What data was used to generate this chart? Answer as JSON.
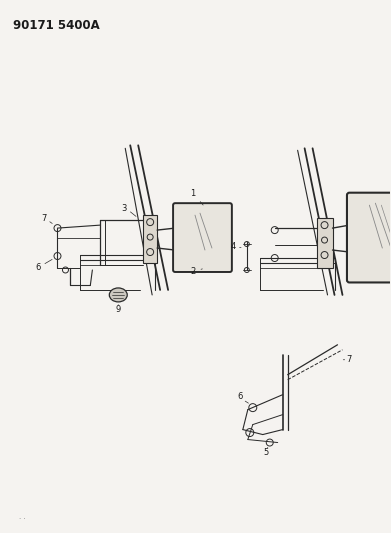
{
  "title": "90171 5400A",
  "background_color": "#f5f3f0",
  "line_color": "#2a2a2a",
  "text_color": "#1a1a1a",
  "figsize": [
    3.91,
    5.33
  ],
  "dpi": 100,
  "label_fs": 6.0
}
